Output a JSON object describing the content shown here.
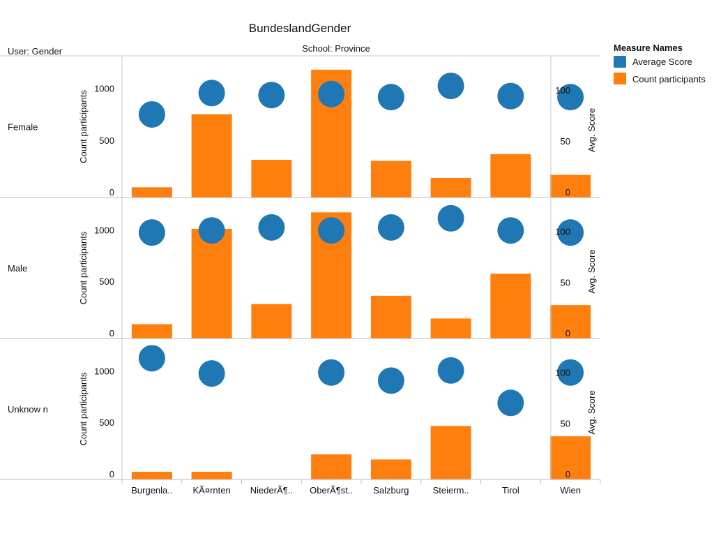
{
  "chart_data": {
    "type": "bar",
    "title": "BundeslandGender",
    "row_header": "User: Gender",
    "column_header": "School: Province",
    "categories": [
      "Burgenla..",
      "KÃ¤rnten",
      "NiederÃ¶..",
      "OberÃ¶st..",
      "Salzburg",
      "Steierm..",
      "Tirol",
      "Wien"
    ],
    "rows": [
      "Female",
      "Male",
      "Unknow n"
    ],
    "left_axis": {
      "label": "Count participants",
      "ticks": [
        0,
        500,
        1000
      ],
      "ylim": [
        0,
        1260
      ]
    },
    "right_axis": {
      "label": "Avg. Score",
      "ticks": [
        0,
        50,
        100
      ],
      "ylim": [
        0,
        128
      ]
    },
    "legend": {
      "title": "Measure Names",
      "position": "right",
      "entries": [
        {
          "label": "Average Score",
          "color": "#1f77b4",
          "shape": "circle"
        },
        {
          "label": "Count participants",
          "color": "#ff7f0e",
          "shape": "square"
        }
      ]
    },
    "series": [
      {
        "name": "Count participants",
        "mark": "bar",
        "color": "#ff7f0e",
        "axis": "left",
        "values": [
          [
            45,
            750,
            310,
            1180,
            300,
            135,
            365,
            165
          ],
          [
            85,
            1010,
            280,
            1170,
            360,
            140,
            575,
            270
          ],
          [
            20,
            20,
            null,
            190,
            140,
            465,
            null,
            365
          ]
        ]
      },
      {
        "name": "Average Score",
        "mark": "circle",
        "color": "#1f77b4",
        "axis": "right",
        "values": [
          [
            76,
            97,
            95,
            96,
            93,
            104,
            94,
            93
          ],
          [
            99,
            101,
            104,
            101,
            104,
            113,
            101,
            99
          ],
          [
            114,
            99,
            null,
            100,
            92,
            102,
            70,
            100
          ]
        ]
      }
    ],
    "grid": false
  }
}
